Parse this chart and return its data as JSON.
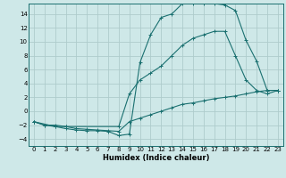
{
  "xlabel": "Humidex (Indice chaleur)",
  "bg_color": "#cee8e8",
  "grid_color": "#aecccc",
  "line_color": "#1a7070",
  "xlim": [
    -0.5,
    23.5
  ],
  "ylim": [
    -5.0,
    15.5
  ],
  "xticks": [
    0,
    1,
    2,
    3,
    4,
    5,
    6,
    7,
    8,
    9,
    10,
    11,
    12,
    13,
    14,
    15,
    16,
    17,
    18,
    19,
    20,
    21,
    22,
    23
  ],
  "yticks": [
    -4,
    -2,
    0,
    2,
    4,
    6,
    8,
    10,
    12,
    14
  ],
  "line1_x": [
    0,
    1,
    2,
    3,
    4,
    5,
    6,
    7,
    8,
    9,
    10,
    11,
    12,
    13,
    14,
    15,
    16,
    17,
    18,
    19,
    20,
    21,
    22,
    23
  ],
  "line1_y": [
    -1.5,
    -2.0,
    -2.2,
    -2.5,
    -2.7,
    -2.8,
    -2.8,
    -2.9,
    -3.5,
    -3.3,
    7.0,
    11.0,
    13.5,
    14.0,
    15.5,
    15.5,
    15.5,
    15.5,
    15.3,
    14.5,
    10.2,
    7.2,
    3.0,
    3.0
  ],
  "line2_x": [
    0,
    2,
    3,
    8,
    9,
    10,
    11,
    12,
    13,
    14,
    15,
    16,
    17,
    18,
    19,
    20,
    21,
    22,
    23
  ],
  "line2_y": [
    -1.5,
    -2.2,
    -2.2,
    -2.2,
    2.5,
    4.5,
    5.5,
    6.5,
    8.0,
    9.5,
    10.5,
    11.0,
    11.5,
    11.5,
    8.0,
    4.5,
    3.0,
    2.5,
    3.0
  ],
  "line3_x": [
    0,
    1,
    2,
    3,
    4,
    5,
    6,
    7,
    8,
    9,
    10,
    11,
    12,
    13,
    14,
    15,
    16,
    17,
    18,
    19,
    20,
    21,
    22,
    23
  ],
  "line3_y": [
    -1.5,
    -2.0,
    -2.0,
    -2.2,
    -2.5,
    -2.6,
    -2.7,
    -2.8,
    -2.9,
    -1.5,
    -1.0,
    -0.5,
    0.0,
    0.5,
    1.0,
    1.2,
    1.5,
    1.8,
    2.0,
    2.2,
    2.5,
    2.8,
    3.0,
    3.0
  ],
  "xlabel_fontsize": 6.0,
  "tick_fontsize": 5.0
}
